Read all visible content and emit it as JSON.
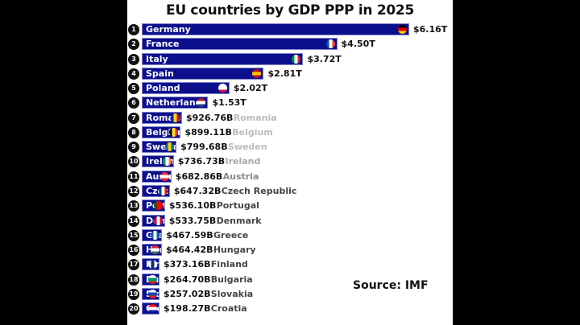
{
  "chart_data": {
    "type": "bar",
    "orientation": "horizontal",
    "title": "EU countries by GDP PPP in 2025",
    "source": "Source: IMF",
    "bar_color": "#0c0f8c",
    "unit": "USD trillions",
    "rows": [
      {
        "rank": "1",
        "name": "Germany",
        "value": 6.16,
        "label": "$6.16T",
        "flag": [
          "#000",
          "#dd0000",
          "#ffce00"
        ]
      },
      {
        "rank": "2",
        "name": "France",
        "value": 4.5,
        "label": "$4.50T",
        "flag": [
          "#0055a4",
          "#fff",
          "#ef4135"
        ]
      },
      {
        "rank": "3",
        "name": "Italy",
        "value": 3.72,
        "label": "$3.72T",
        "flag": [
          "#009246",
          "#fff",
          "#ce2b37"
        ]
      },
      {
        "rank": "4",
        "name": "Spain",
        "value": 2.81,
        "label": "$2.81T",
        "flag": [
          "#c60b1e",
          "#ffc400",
          "#c60b1e"
        ]
      },
      {
        "rank": "5",
        "name": "Poland",
        "value": 2.02,
        "label": "$2.02T",
        "flag": [
          "#fff",
          "#fff",
          "#dc143c"
        ]
      },
      {
        "rank": "6",
        "name": "Netherland",
        "value": 1.53,
        "label": "$1.53T",
        "flag": [
          "#ae1c28",
          "#fff",
          "#21468b"
        ]
      },
      {
        "rank": "7",
        "name": "Romania",
        "value": 0.92676,
        "label": "$926.76B",
        "flag": [
          "#002b7f",
          "#fcd116",
          "#ce1126"
        ]
      },
      {
        "rank": "8",
        "name": "Belgium",
        "value": 0.89911,
        "label": "$899.11B",
        "flag": [
          "#000",
          "#fdda24",
          "#ef3340"
        ]
      },
      {
        "rank": "9",
        "name": "Sweden",
        "value": 0.79968,
        "label": "$799.68B",
        "flag": [
          "#006aa7",
          "#fecc00",
          "#006aa7"
        ]
      },
      {
        "rank": "10",
        "name": "Ireland",
        "value": 0.73673,
        "label": "$736.73B",
        "flag": [
          "#169b62",
          "#fff",
          "#ff883e"
        ]
      },
      {
        "rank": "11",
        "name": "Austria",
        "value": 0.68286,
        "label": "$682.86B",
        "flag": [
          "#ed2939",
          "#fff",
          "#ed2939"
        ]
      },
      {
        "rank": "12",
        "name": "Czech Republic",
        "value": 0.64732,
        "label": "$647.32B",
        "flag": [
          "#11457e",
          "#fff",
          "#d7141a"
        ]
      },
      {
        "rank": "13",
        "name": "Portugal",
        "value": 0.5361,
        "label": "$536.10B",
        "flag": [
          "#006600",
          "#ff0000",
          "#ff0000"
        ]
      },
      {
        "rank": "14",
        "name": "Denmark",
        "value": 0.53375,
        "label": "$533.75B",
        "flag": [
          "#c60c30",
          "#fff",
          "#c60c30"
        ]
      },
      {
        "rank": "15",
        "name": "Greece",
        "value": 0.46759,
        "label": "$467.59B",
        "flag": [
          "#0d5eaf",
          "#fff",
          "#0d5eaf"
        ]
      },
      {
        "rank": "16",
        "name": "Hungary",
        "value": 0.46442,
        "label": "$464.42B",
        "flag": [
          "#ce2939",
          "#fff",
          "#477050"
        ]
      },
      {
        "rank": "17",
        "name": "Finland",
        "value": 0.37316,
        "label": "$373.16B",
        "flag": [
          "#fff",
          "#003580",
          "#fff"
        ]
      },
      {
        "rank": "18",
        "name": "Bulgaria",
        "value": 0.2647,
        "label": "$264.70B",
        "flag": [
          "#fff",
          "#00966e",
          "#d62612"
        ]
      },
      {
        "rank": "19",
        "name": "Slovakia",
        "value": 0.25702,
        "label": "$257.02B",
        "flag": [
          "#fff",
          "#0b4ea2",
          "#ee1c25"
        ]
      },
      {
        "rank": "20",
        "name": "Croatia",
        "value": 0.19827,
        "label": "$198.27B",
        "flag": [
          "#ff0000",
          "#fff",
          "#171796"
        ]
      }
    ]
  }
}
